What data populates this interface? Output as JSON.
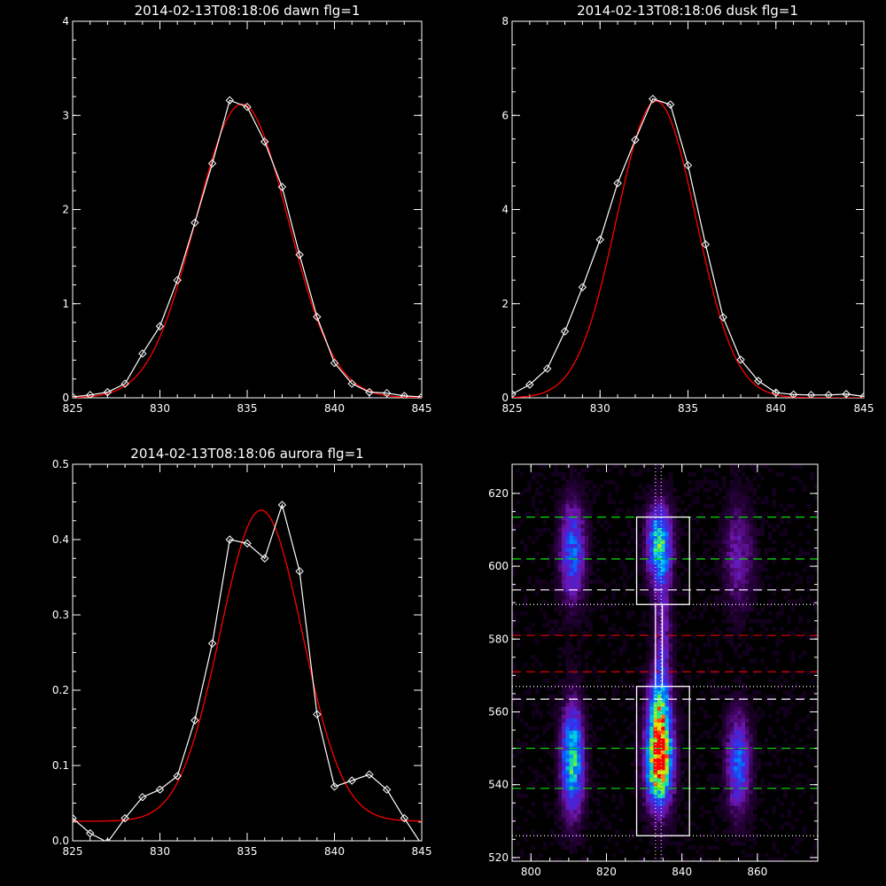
{
  "chart_data": [
    {
      "type": "line",
      "title": "2014-02-13T08:18:06 dawn flg=1",
      "xlim": [
        825,
        845
      ],
      "ylim": [
        0,
        4
      ],
      "xticks": [
        "825",
        "830",
        "835",
        "840",
        "845"
      ],
      "yticks": [
        "0",
        "1",
        "2",
        "3",
        "4"
      ],
      "series": [
        {
          "kind": "measured",
          "color": "#ffffff",
          "markers": "diamond",
          "x": [
            825,
            826,
            827,
            828,
            829,
            830,
            831,
            832,
            833,
            834,
            835,
            836,
            837,
            838,
            839,
            840,
            841,
            842,
            843,
            844,
            845
          ],
          "y": [
            0.01,
            0.03,
            0.06,
            0.15,
            0.47,
            0.76,
            1.25,
            1.86,
            2.49,
            3.16,
            3.09,
            2.72,
            2.24,
            1.52,
            0.86,
            0.37,
            0.15,
            0.06,
            0.05,
            0.02,
            0.01
          ]
        },
        {
          "kind": "fit",
          "color": "#ff0000",
          "curve": "gaussian",
          "amplitude": 3.12,
          "center": 834.7,
          "sigma": 2.65,
          "offset": 0.0
        }
      ]
    },
    {
      "type": "line",
      "title": "2014-02-13T08:18:06 dusk flg=1",
      "xlim": [
        825,
        845
      ],
      "ylim": [
        0,
        8
      ],
      "xticks": [
        "825",
        "830",
        "835",
        "840",
        "845"
      ],
      "yticks": [
        "0",
        "2",
        "4",
        "6",
        "8"
      ],
      "series": [
        {
          "kind": "measured",
          "color": "#ffffff",
          "markers": "diamond",
          "x": [
            825,
            826,
            827,
            828,
            829,
            830,
            831,
            832,
            833,
            834,
            835,
            836,
            837,
            838,
            839,
            840,
            841,
            842,
            843,
            844,
            845
          ],
          "y": [
            0.08,
            0.28,
            0.62,
            1.41,
            2.35,
            3.36,
            4.56,
            5.48,
            6.35,
            6.23,
            4.94,
            3.26,
            1.71,
            0.81,
            0.36,
            0.11,
            0.07,
            0.06,
            0.06,
            0.08,
            0.03
          ]
        },
        {
          "kind": "fit",
          "color": "#ff0000",
          "curve": "gaussian",
          "amplitude": 6.3,
          "center": 833.2,
          "sigma": 2.25,
          "offset": 0.0
        }
      ]
    },
    {
      "type": "line",
      "title": "2014-02-13T08:18:06 aurora flg=1",
      "xlim": [
        825,
        845
      ],
      "ylim": [
        0,
        0.5
      ],
      "xticks": [
        "825",
        "830",
        "835",
        "840",
        "845"
      ],
      "yticks": [
        "0.0",
        "0.1",
        "0.2",
        "0.3",
        "0.4",
        "0.5"
      ],
      "series": [
        {
          "kind": "measured",
          "color": "#ffffff",
          "markers": "diamond",
          "x": [
            825,
            826,
            827,
            828,
            829,
            830,
            831,
            832,
            833,
            834,
            835,
            836,
            837,
            838,
            839,
            840,
            841,
            842,
            843,
            844,
            845
          ],
          "y": [
            0.03,
            0.01,
            -0.002,
            0.03,
            0.058,
            0.068,
            0.086,
            0.16,
            0.262,
            0.4,
            0.395,
            0.375,
            0.446,
            0.358,
            0.168,
            0.072,
            0.08,
            0.088,
            0.068,
            0.03,
            -0.005
          ]
        },
        {
          "kind": "fit",
          "color": "#ff0000",
          "curve": "gaussian",
          "amplitude": 0.413,
          "center": 835.8,
          "sigma": 2.35,
          "offset": 0.026
        }
      ]
    },
    {
      "type": "heatmap",
      "title": "",
      "xlim": [
        795,
        876
      ],
      "ylim": [
        519,
        628
      ],
      "xticks": [
        "800",
        "820",
        "840",
        "860"
      ],
      "yticks": [
        "520",
        "540",
        "560",
        "580",
        "600",
        "620"
      ],
      "emission_blobs": [
        {
          "x": 811,
          "y": 547,
          "amplitude": 0.62,
          "sx": 2.0,
          "sy": 10
        },
        {
          "x": 811,
          "y": 604,
          "amplitude": 0.42,
          "sx": 2.2,
          "sy": 9
        },
        {
          "x": 834,
          "y": 546,
          "amplitude": 1.0,
          "sx": 2.3,
          "sy": 8
        },
        {
          "x": 834,
          "y": 560,
          "amplitude": 0.5,
          "sx": 2.0,
          "sy": 8
        },
        {
          "x": 834,
          "y": 606,
          "amplitude": 0.62,
          "sx": 2.2,
          "sy": 7
        },
        {
          "x": 835,
          "y": 580,
          "amplitude": 0.22,
          "sx": 1.5,
          "sy": 14
        },
        {
          "x": 855,
          "y": 546,
          "amplitude": 0.4,
          "sx": 2.2,
          "sy": 9
        },
        {
          "x": 855,
          "y": 603,
          "amplitude": 0.2,
          "sx": 2.8,
          "sy": 10
        }
      ],
      "band_lines": [
        {
          "y": 613.5,
          "color": "#00e000",
          "style": "dashed"
        },
        {
          "y": 602.0,
          "color": "#00e000",
          "style": "dashed"
        },
        {
          "y": 593.5,
          "color": "#ffffff",
          "style": "dashed"
        },
        {
          "y": 589.5,
          "color": "#ffffff",
          "style": "dotted"
        },
        {
          "y": 581.0,
          "color": "#e00000",
          "style": "dashed"
        },
        {
          "y": 571.0,
          "color": "#e00000",
          "style": "dashed"
        },
        {
          "y": 567.0,
          "color": "#ffffff",
          "style": "dotted"
        },
        {
          "y": 563.5,
          "color": "#ffffff",
          "style": "dashed"
        },
        {
          "y": 550.0,
          "color": "#00e000",
          "style": "dashed"
        },
        {
          "y": 539.0,
          "color": "#00e000",
          "style": "dashed"
        },
        {
          "y": 526.0,
          "color": "#ffffff",
          "style": "dotted"
        }
      ],
      "center_lines_x": [
        833.0,
        834.5
      ],
      "selection_boxes": [
        {
          "x0": 828.0,
          "x1": 842.0,
          "y0": 589.5,
          "y1": 613.5
        },
        {
          "x0": 828.0,
          "x1": 842.0,
          "y0": 526.0,
          "y1": 567.0
        },
        {
          "x0": 833.0,
          "x1": 834.8,
          "y0": 567.0,
          "y1": 589.5
        }
      ]
    }
  ]
}
